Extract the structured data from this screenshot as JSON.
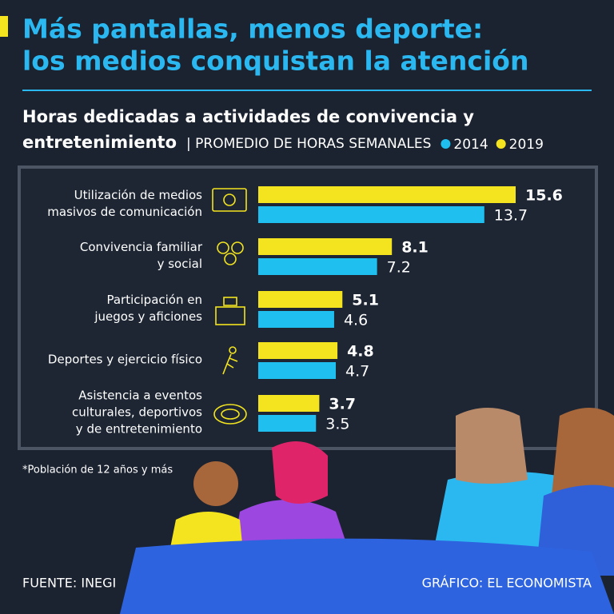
{
  "chart_data": {
    "type": "bar",
    "orientation": "horizontal",
    "title": [
      "Más pantallas, menos deporte:",
      "los medios conquistan la atención"
    ],
    "subtitle": [
      "Horas dedicadas a actividades de convivencia y",
      "entretenimiento"
    ],
    "unit": "| PROMEDIO DE HORAS SEMANALES",
    "categories": [
      [
        "Utilización de medios",
        "masivos de comunicación"
      ],
      [
        "Convivencia familiar",
        "y social"
      ],
      [
        "Participación en",
        "juegos y aficiones"
      ],
      [
        "Deportes y ejercicio físico"
      ],
      [
        "Asistencia a eventos",
        "culturales, deportivos",
        "y de entretenimiento"
      ]
    ],
    "series": [
      {
        "name": "2019",
        "color": "#f3e41f",
        "values": [
          15.6,
          8.1,
          5.1,
          4.8,
          3.7
        ]
      },
      {
        "name": "2014",
        "color": "#1fc0f0",
        "values": [
          13.7,
          7.2,
          4.6,
          4.7,
          3.5
        ]
      }
    ],
    "legend_order": [
      1,
      0
    ],
    "note": "*Población de 12 años y más",
    "source": "FUENTE: INEGI",
    "credit": "GRÁFICO: EL ECONOMISTA"
  }
}
